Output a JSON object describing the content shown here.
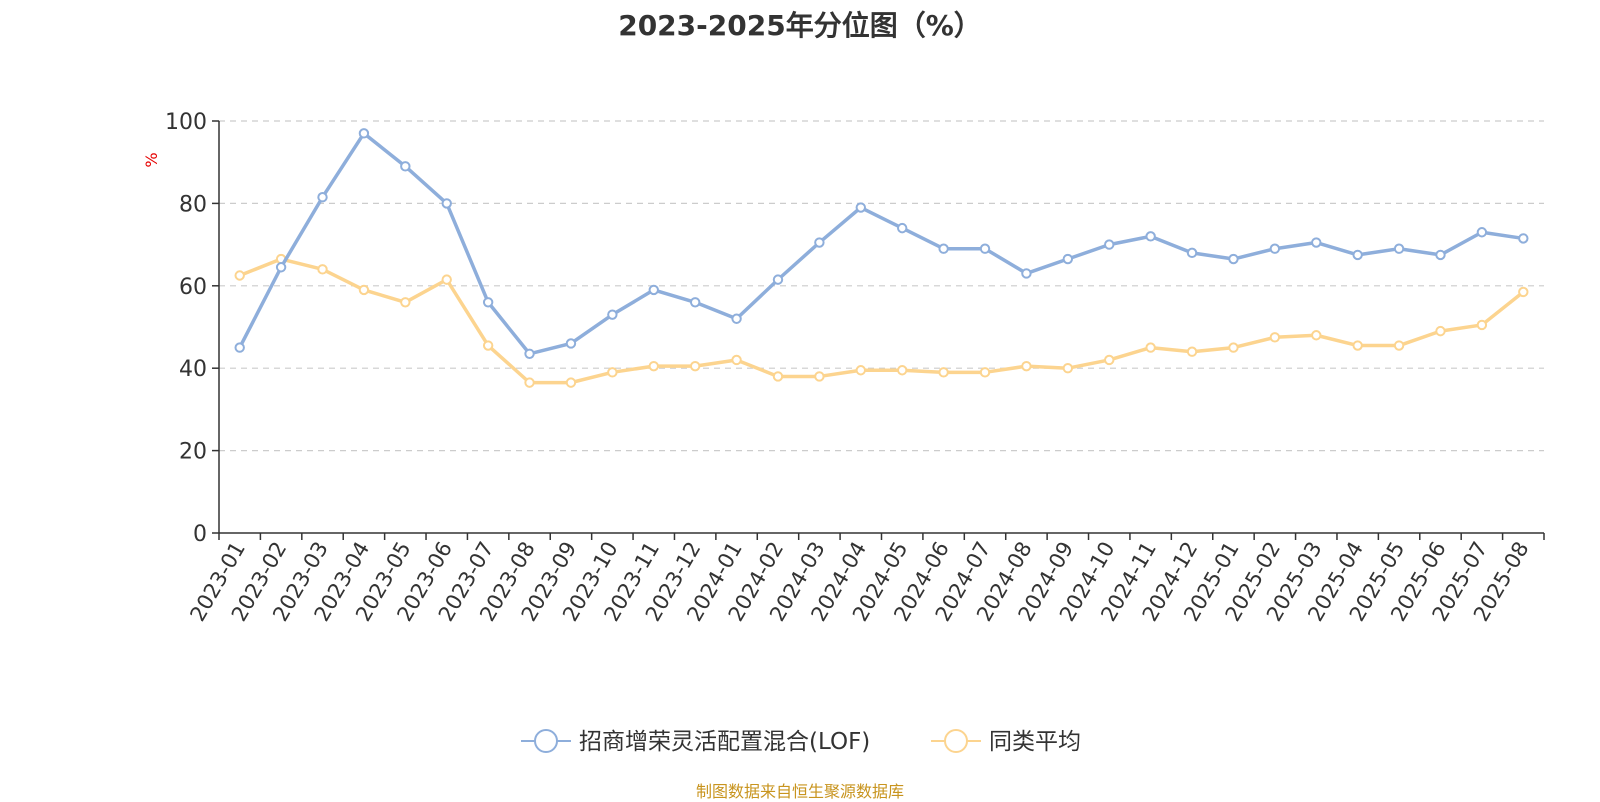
{
  "chart_data": {
    "type": "line",
    "title": "2023-2025年分位图（%）",
    "ylabel": "%",
    "xlabel": "",
    "ylim": [
      0,
      100
    ],
    "yticks": [
      0,
      20,
      40,
      60,
      80,
      100
    ],
    "grid": true,
    "legend_position": "bottom-center",
    "categories": [
      "2023-01",
      "2023-02",
      "2023-03",
      "2023-04",
      "2023-05",
      "2023-06",
      "2023-07",
      "2023-08",
      "2023-09",
      "2023-10",
      "2023-11",
      "2023-12",
      "2024-01",
      "2024-02",
      "2024-03",
      "2024-04",
      "2024-05",
      "2024-06",
      "2024-07",
      "2024-08",
      "2024-09",
      "2024-10",
      "2024-11",
      "2024-12",
      "2025-01",
      "2025-02",
      "2025-03",
      "2025-04",
      "2025-05",
      "2025-06",
      "2025-07",
      "2025-08"
    ],
    "series": [
      {
        "name": "招商增荣灵活配置混合(LOF)",
        "color": "#8eaedb",
        "values": [
          45,
          64.5,
          81.5,
          97,
          89,
          80,
          56,
          43.5,
          46,
          53,
          59,
          56,
          52,
          61.5,
          70.5,
          79,
          74,
          69,
          69,
          63,
          66.5,
          70,
          72,
          68,
          66.5,
          69,
          70.5,
          67.5,
          69,
          67.5,
          73,
          71.5
        ]
      },
      {
        "name": "同类平均",
        "color": "#fcd48f",
        "values": [
          62.5,
          66.5,
          64,
          59,
          56,
          61.5,
          45.5,
          36.5,
          36.5,
          39,
          40.5,
          40.5,
          42,
          38,
          38,
          39.5,
          39.5,
          39,
          39,
          40.5,
          40,
          42,
          45,
          44,
          45,
          47.5,
          48,
          45.5,
          45.5,
          49,
          50.5,
          58.5
        ]
      }
    ]
  },
  "footer": {
    "source": "制图数据来自恒生聚源数据库"
  },
  "colors": {
    "axis": "#333333",
    "grid": "#cccccc",
    "ylabel": "#e60000",
    "source": "#c8941e"
  }
}
